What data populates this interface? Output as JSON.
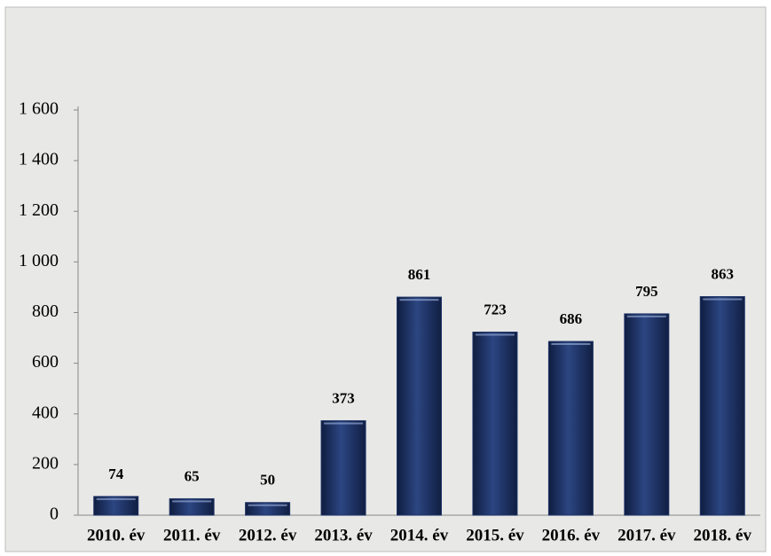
{
  "chart_data": {
    "type": "bar",
    "categories": [
      "2010. év",
      "2011. év",
      "2012. év",
      "2013. év",
      "2014. év",
      "2015. év",
      "2016. év",
      "2017. év",
      "2018. év"
    ],
    "values": [
      74,
      65,
      50,
      373,
      861,
      723,
      686,
      795,
      863
    ],
    "color": "#1f3466",
    "ylim": [
      0,
      1600
    ],
    "yticks": [
      0,
      200,
      400,
      600,
      800,
      {
        "value": 1000,
        "label": "1 000"
      },
      {
        "value": 1200,
        "label": "1 200"
      },
      {
        "value": 1400,
        "label": "1 400"
      },
      {
        "value": 1600,
        "label": "1 600"
      }
    ],
    "grid": false
  }
}
